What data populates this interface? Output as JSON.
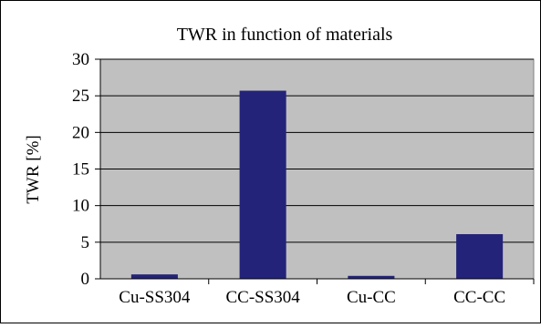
{
  "chart_data": {
    "type": "bar",
    "title": "TWR in function of materials",
    "xlabel": "",
    "ylabel": "TWR [%]",
    "categories": [
      "Cu-SS304",
      "CC-SS304",
      "Cu-CC",
      "CC-CC"
    ],
    "values": [
      0.6,
      25.7,
      0.4,
      6.1
    ],
    "ylim": [
      0,
      30
    ],
    "yticks": [
      "0",
      "5",
      "10",
      "15",
      "20",
      "25",
      "30"
    ],
    "grid": true,
    "legend": "none",
    "colors": {
      "bar": "#23237a",
      "plot_background": "#c0c0c0",
      "gridline": "#000000"
    }
  }
}
